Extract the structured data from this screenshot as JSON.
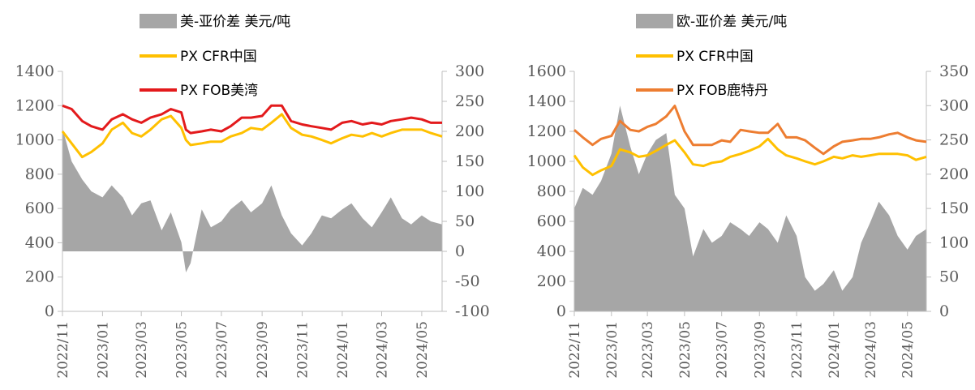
{
  "chart_data": [
    {
      "type": "line",
      "legend": [
        {
          "label": "美-亚价差 美元/吨",
          "kind": "area",
          "color": "#a6a6a6"
        },
        {
          "label": "PX CFR中国",
          "kind": "line",
          "color": "#ffc000"
        },
        {
          "label": "PX FOB美湾",
          "kind": "line",
          "color": "#e31a1c"
        }
      ],
      "x_ticks": [
        "2022/11",
        "2023/01",
        "2023/03",
        "2023/05",
        "2023/07",
        "2023/09",
        "2023/11",
        "2024/01",
        "2024/03",
        "2024/05"
      ],
      "y_left": {
        "min": 0,
        "max": 1400,
        "ticks": [
          "0",
          "200",
          "400",
          "600",
          "800",
          "1000",
          "1200",
          "1400"
        ]
      },
      "y_right": {
        "min": -100,
        "max": 300,
        "ticks": [
          "-100",
          "-50",
          "0",
          "50",
          "100",
          "150",
          "200",
          "250",
          "300"
        ]
      },
      "series": [
        {
          "name": "美-亚价差 美元/吨",
          "type": "area",
          "axis": "right",
          "color": "#a6a6a6",
          "x": [
            "2022/11/01",
            "2022/11/15",
            "2022/12/01",
            "2022/12/15",
            "2023/01/01",
            "2023/01/15",
            "2023/02/01",
            "2023/02/15",
            "2023/03/01",
            "2023/03/15",
            "2023/04/01",
            "2023/04/15",
            "2023/05/01",
            "2023/05/08",
            "2023/05/15",
            "2023/06/01",
            "2023/06/15",
            "2023/07/01",
            "2023/07/15",
            "2023/08/01",
            "2023/08/15",
            "2023/09/01",
            "2023/09/15",
            "2023/10/01",
            "2023/10/15",
            "2023/11/01",
            "2023/11/15",
            "2023/12/01",
            "2023/12/15",
            "2024/01/01",
            "2024/01/15",
            "2024/02/01",
            "2024/02/15",
            "2024/03/01",
            "2024/03/15",
            "2024/04/01",
            "2024/04/15",
            "2024/05/01",
            "2024/05/15",
            "2024/06/01"
          ],
          "values": [
            205,
            150,
            120,
            100,
            90,
            110,
            90,
            60,
            80,
            85,
            35,
            65,
            15,
            -35,
            -20,
            70,
            40,
            50,
            70,
            85,
            65,
            80,
            110,
            60,
            30,
            10,
            30,
            60,
            55,
            70,
            80,
            55,
            40,
            65,
            90,
            55,
            45,
            60,
            50,
            45
          ]
        },
        {
          "name": "PX CFR中国",
          "type": "line",
          "axis": "left",
          "color": "#ffc000",
          "x": [
            "2022/11/01",
            "2022/11/15",
            "2022/12/01",
            "2022/12/15",
            "2023/01/01",
            "2023/01/15",
            "2023/02/01",
            "2023/02/15",
            "2023/03/01",
            "2023/03/15",
            "2023/04/01",
            "2023/04/15",
            "2023/05/01",
            "2023/05/08",
            "2023/05/15",
            "2023/06/01",
            "2023/06/15",
            "2023/07/01",
            "2023/07/15",
            "2023/08/01",
            "2023/08/15",
            "2023/09/01",
            "2023/09/15",
            "2023/10/01",
            "2023/10/15",
            "2023/11/01",
            "2023/11/15",
            "2023/12/01",
            "2023/12/15",
            "2024/01/01",
            "2024/01/15",
            "2024/02/01",
            "2024/02/15",
            "2024/03/01",
            "2024/03/15",
            "2024/04/01",
            "2024/04/15",
            "2024/05/01",
            "2024/05/15",
            "2024/06/01"
          ],
          "values": [
            1050,
            980,
            900,
            930,
            980,
            1060,
            1100,
            1040,
            1020,
            1060,
            1120,
            1140,
            1070,
            1000,
            970,
            980,
            990,
            990,
            1020,
            1040,
            1070,
            1060,
            1100,
            1150,
            1070,
            1030,
            1020,
            1000,
            980,
            1010,
            1030,
            1020,
            1040,
            1020,
            1040,
            1060,
            1060,
            1060,
            1040,
            1020
          ]
        },
        {
          "name": "PX FOB美湾",
          "type": "line",
          "axis": "left",
          "color": "#e31a1c",
          "x": [
            "2022/11/01",
            "2022/11/15",
            "2022/12/01",
            "2022/12/15",
            "2023/01/01",
            "2023/01/15",
            "2023/02/01",
            "2023/02/15",
            "2023/03/01",
            "2023/03/15",
            "2023/04/01",
            "2023/04/15",
            "2023/05/01",
            "2023/05/08",
            "2023/05/15",
            "2023/06/01",
            "2023/06/15",
            "2023/07/01",
            "2023/07/15",
            "2023/08/01",
            "2023/08/15",
            "2023/09/01",
            "2023/09/15",
            "2023/10/01",
            "2023/10/15",
            "2023/11/01",
            "2023/11/15",
            "2023/12/01",
            "2023/12/15",
            "2024/01/01",
            "2024/01/15",
            "2024/02/01",
            "2024/02/15",
            "2024/03/01",
            "2024/03/15",
            "2024/04/01",
            "2024/04/15",
            "2024/05/01",
            "2024/05/15",
            "2024/06/01"
          ],
          "values": [
            1200,
            1180,
            1110,
            1080,
            1060,
            1120,
            1150,
            1120,
            1100,
            1130,
            1150,
            1180,
            1160,
            1060,
            1040,
            1050,
            1060,
            1050,
            1080,
            1130,
            1130,
            1140,
            1200,
            1200,
            1110,
            1090,
            1080,
            1070,
            1060,
            1100,
            1110,
            1090,
            1100,
            1090,
            1110,
            1120,
            1130,
            1120,
            1100,
            1100
          ]
        }
      ]
    },
    {
      "type": "line",
      "legend": [
        {
          "label": "欧-亚价差 美元/吨",
          "kind": "area",
          "color": "#a6a6a6"
        },
        {
          "label": "PX CFR中国",
          "kind": "line",
          "color": "#ffc000"
        },
        {
          "label": "PX FOB鹿特丹",
          "kind": "line",
          "color": "#ed7d31"
        }
      ],
      "x_ticks": [
        "2022/11",
        "2023/01",
        "2023/03",
        "2023/05",
        "2023/07",
        "2023/09",
        "2023/11",
        "2024/01",
        "2024/03",
        "2024/05"
      ],
      "y_left": {
        "min": 0,
        "max": 1600,
        "ticks": [
          "0",
          "200",
          "400",
          "600",
          "800",
          "1000",
          "1200",
          "1400",
          "1600"
        ]
      },
      "y_right": {
        "min": 0,
        "max": 350,
        "ticks": [
          "0",
          "50",
          "100",
          "150",
          "200",
          "250",
          "300",
          "350"
        ]
      },
      "series": [
        {
          "name": "欧-亚价差 美元/吨",
          "type": "area",
          "axis": "right",
          "color": "#a6a6a6",
          "x": [
            "2022/11/01",
            "2022/11/15",
            "2022/12/01",
            "2022/12/15",
            "2023/01/01",
            "2023/01/15",
            "2023/02/01",
            "2023/02/15",
            "2023/03/01",
            "2023/03/15",
            "2023/04/01",
            "2023/04/15",
            "2023/05/01",
            "2023/05/15",
            "2023/06/01",
            "2023/06/15",
            "2023/07/01",
            "2023/07/15",
            "2023/08/01",
            "2023/08/15",
            "2023/09/01",
            "2023/09/15",
            "2023/10/01",
            "2023/10/15",
            "2023/11/01",
            "2023/11/15",
            "2023/12/01",
            "2023/12/15",
            "2024/01/01",
            "2024/01/15",
            "2024/02/01",
            "2024/02/15",
            "2024/03/01",
            "2024/03/15",
            "2024/04/01",
            "2024/04/15",
            "2024/05/01",
            "2024/05/15",
            "2024/06/01"
          ],
          "values": [
            150,
            180,
            170,
            190,
            230,
            300,
            240,
            200,
            230,
            250,
            260,
            170,
            150,
            80,
            120,
            100,
            110,
            130,
            120,
            110,
            130,
            120,
            100,
            140,
            110,
            50,
            30,
            40,
            60,
            30,
            50,
            100,
            130,
            160,
            140,
            110,
            90,
            110,
            120
          ]
        },
        {
          "name": "PX CFR中国",
          "type": "line",
          "axis": "left",
          "color": "#ffc000",
          "x": [
            "2022/11/01",
            "2022/11/15",
            "2022/12/01",
            "2022/12/15",
            "2023/01/01",
            "2023/01/15",
            "2023/02/01",
            "2023/02/15",
            "2023/03/01",
            "2023/03/15",
            "2023/04/01",
            "2023/04/15",
            "2023/05/01",
            "2023/05/15",
            "2023/06/01",
            "2023/06/15",
            "2023/07/01",
            "2023/07/15",
            "2023/08/01",
            "2023/08/15",
            "2023/09/01",
            "2023/09/15",
            "2023/10/01",
            "2023/10/15",
            "2023/11/01",
            "2023/11/15",
            "2023/12/01",
            "2023/12/15",
            "2024/01/01",
            "2024/01/15",
            "2024/02/01",
            "2024/02/15",
            "2024/03/01",
            "2024/03/15",
            "2024/04/01",
            "2024/04/15",
            "2024/05/01",
            "2024/05/15",
            "2024/06/01"
          ],
          "values": [
            1040,
            960,
            910,
            940,
            970,
            1080,
            1060,
            1030,
            1040,
            1070,
            1110,
            1140,
            1060,
            980,
            970,
            990,
            1000,
            1030,
            1050,
            1070,
            1100,
            1150,
            1080,
            1040,
            1020,
            1000,
            980,
            1000,
            1030,
            1020,
            1040,
            1030,
            1040,
            1050,
            1050,
            1050,
            1040,
            1010,
            1030
          ]
        },
        {
          "name": "PX FOB鹿特丹",
          "type": "line",
          "axis": "left",
          "color": "#ed7d31",
          "x": [
            "2022/11/01",
            "2022/11/15",
            "2022/12/01",
            "2022/12/15",
            "2023/01/01",
            "2023/01/15",
            "2023/02/01",
            "2023/02/15",
            "2023/03/01",
            "2023/03/15",
            "2023/04/01",
            "2023/04/15",
            "2023/05/01",
            "2023/05/15",
            "2023/06/01",
            "2023/06/15",
            "2023/07/01",
            "2023/07/15",
            "2023/08/01",
            "2023/08/15",
            "2023/09/01",
            "2023/09/15",
            "2023/10/01",
            "2023/10/15",
            "2023/11/01",
            "2023/11/15",
            "2023/12/01",
            "2023/12/15",
            "2024/01/01",
            "2024/01/15",
            "2024/02/01",
            "2024/02/15",
            "2024/03/01",
            "2024/03/15",
            "2024/04/01",
            "2024/04/15",
            "2024/05/01",
            "2024/05/15",
            "2024/06/01"
          ],
          "values": [
            1210,
            1160,
            1110,
            1150,
            1170,
            1270,
            1210,
            1200,
            1230,
            1250,
            1300,
            1370,
            1200,
            1110,
            1110,
            1110,
            1140,
            1130,
            1210,
            1200,
            1190,
            1190,
            1250,
            1160,
            1160,
            1140,
            1090,
            1050,
            1100,
            1130,
            1140,
            1150,
            1150,
            1160,
            1180,
            1190,
            1160,
            1140,
            1130
          ]
        }
      ]
    }
  ]
}
